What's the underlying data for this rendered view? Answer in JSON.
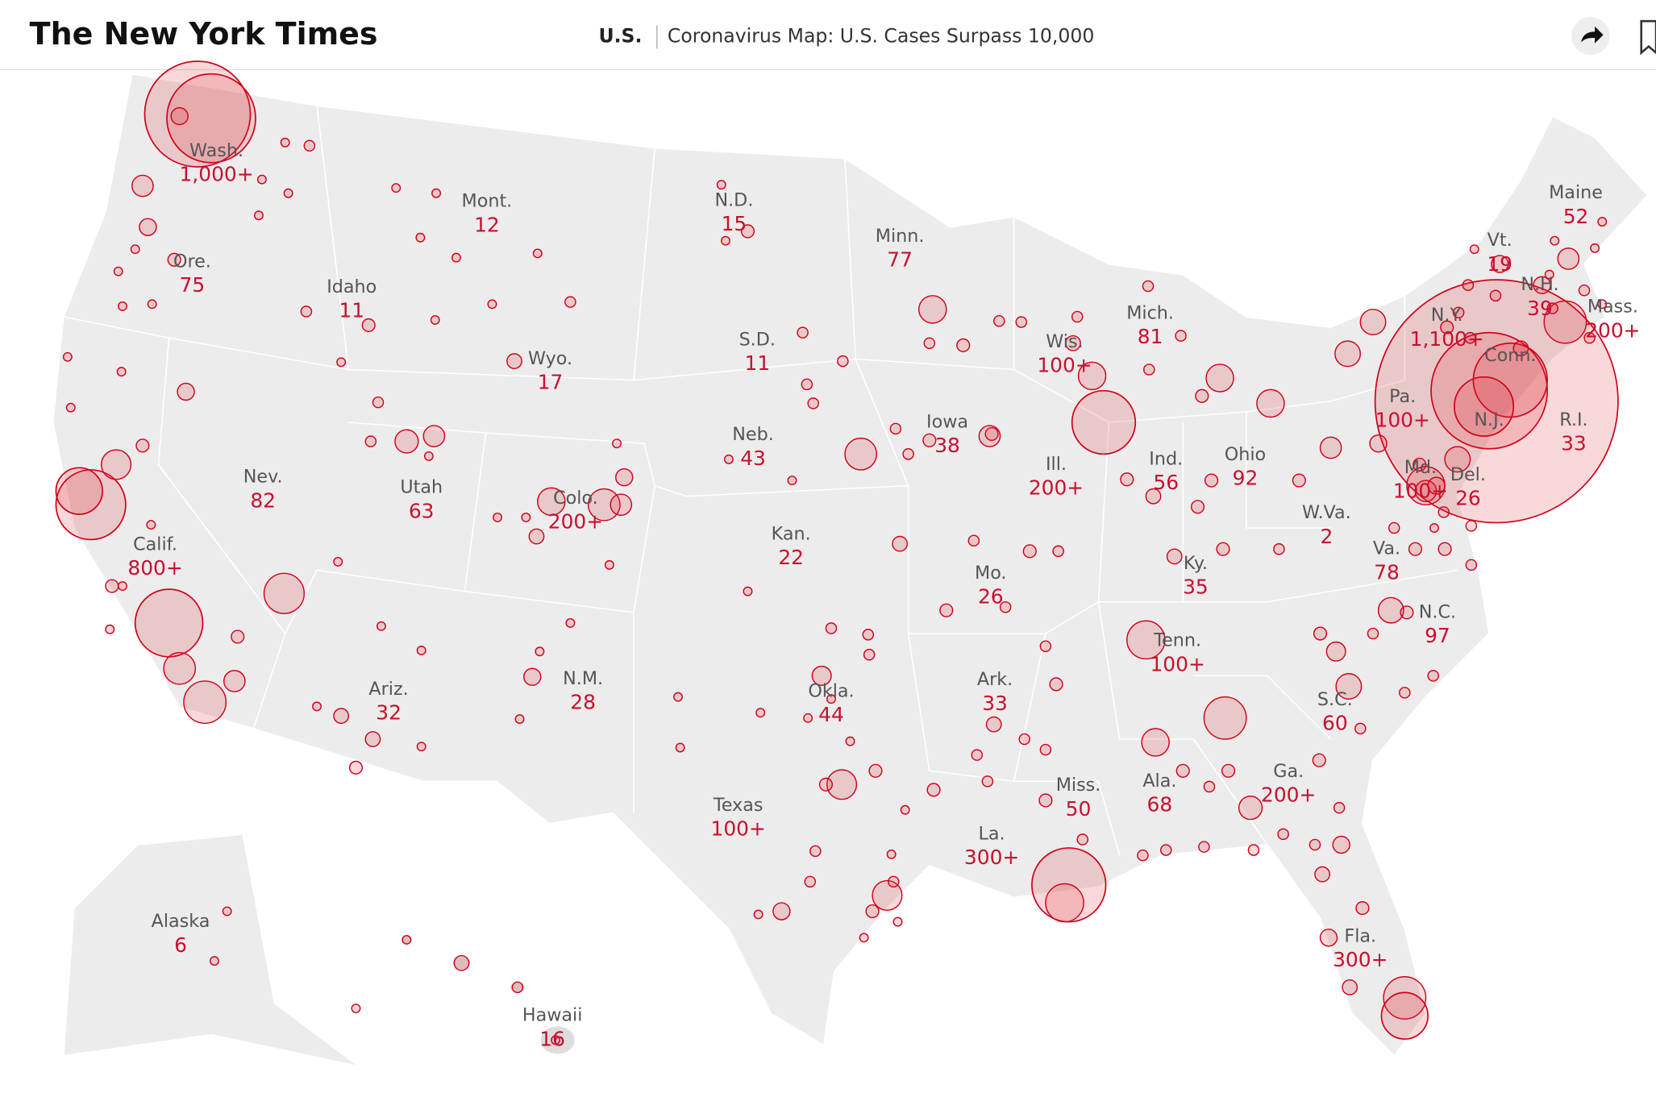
{
  "header": {
    "logo": "The New York Times",
    "section": "U.S.",
    "headline": "Coronavirus Map: U.S. Cases Surpass 10,000"
  },
  "states": [
    {
      "name": "Wash.",
      "count": "1,000+"
    },
    {
      "name": "Mont.",
      "count": "12"
    },
    {
      "name": "N.D.",
      "count": "15"
    },
    {
      "name": "Minn.",
      "count": "77"
    },
    {
      "name": "Maine",
      "count": "52"
    },
    {
      "name": "Vt.",
      "count": "19"
    },
    {
      "name": "N.H.",
      "count": "39"
    },
    {
      "name": "Mass.",
      "count": "200+"
    },
    {
      "name": "Ore.",
      "count": "75"
    },
    {
      "name": "Idaho",
      "count": "11"
    },
    {
      "name": "Wyo.",
      "count": "17"
    },
    {
      "name": "S.D.",
      "count": "11"
    },
    {
      "name": "Mich.",
      "count": "81"
    },
    {
      "name": "N.Y.",
      "count": "1,100+"
    },
    {
      "name": "Wis.",
      "count": "100+"
    },
    {
      "name": "Conn."
    },
    {
      "name": "Pa.",
      "count": "100+"
    },
    {
      "name": "R.I.",
      "count": "33"
    },
    {
      "name": "N.J."
    },
    {
      "name": "Nev.",
      "count": "82"
    },
    {
      "name": "Utah",
      "count": "63"
    },
    {
      "name": "Neb.",
      "count": "43"
    },
    {
      "name": "Iowa",
      "count": "38"
    },
    {
      "name": "Ill.",
      "count": "200+"
    },
    {
      "name": "Ind.",
      "count": "56"
    },
    {
      "name": "Ohio",
      "count": "92"
    },
    {
      "name": "Md.",
      "count": "100+"
    },
    {
      "name": "Del.",
      "count": "26"
    },
    {
      "name": "Colo.",
      "count": "200+"
    },
    {
      "name": "Calif.",
      "count": "800+"
    },
    {
      "name": "Kan.",
      "count": "22"
    },
    {
      "name": "W.Va.",
      "count": "2"
    },
    {
      "name": "Mo.",
      "count": "26"
    },
    {
      "name": "Ky.",
      "count": "35"
    },
    {
      "name": "Va.",
      "count": "78"
    },
    {
      "name": "N.C.",
      "count": "97"
    },
    {
      "name": "Tenn.",
      "count": "100+"
    },
    {
      "name": "Ariz.",
      "count": "32"
    },
    {
      "name": "N.M.",
      "count": "28"
    },
    {
      "name": "Okla.",
      "count": "44"
    },
    {
      "name": "Ark.",
      "count": "33"
    },
    {
      "name": "S.C.",
      "count": "60"
    },
    {
      "name": "Miss.",
      "count": "50"
    },
    {
      "name": "Ala.",
      "count": "68"
    },
    {
      "name": "Ga.",
      "count": "200+"
    },
    {
      "name": "Texas",
      "count": "100+"
    },
    {
      "name": "La.",
      "count": "300+"
    },
    {
      "name": "Fla.",
      "count": "300+"
    },
    {
      "name": "Alaska",
      "count": "6"
    },
    {
      "name": "Hawaii",
      "count": "16"
    }
  ]
}
